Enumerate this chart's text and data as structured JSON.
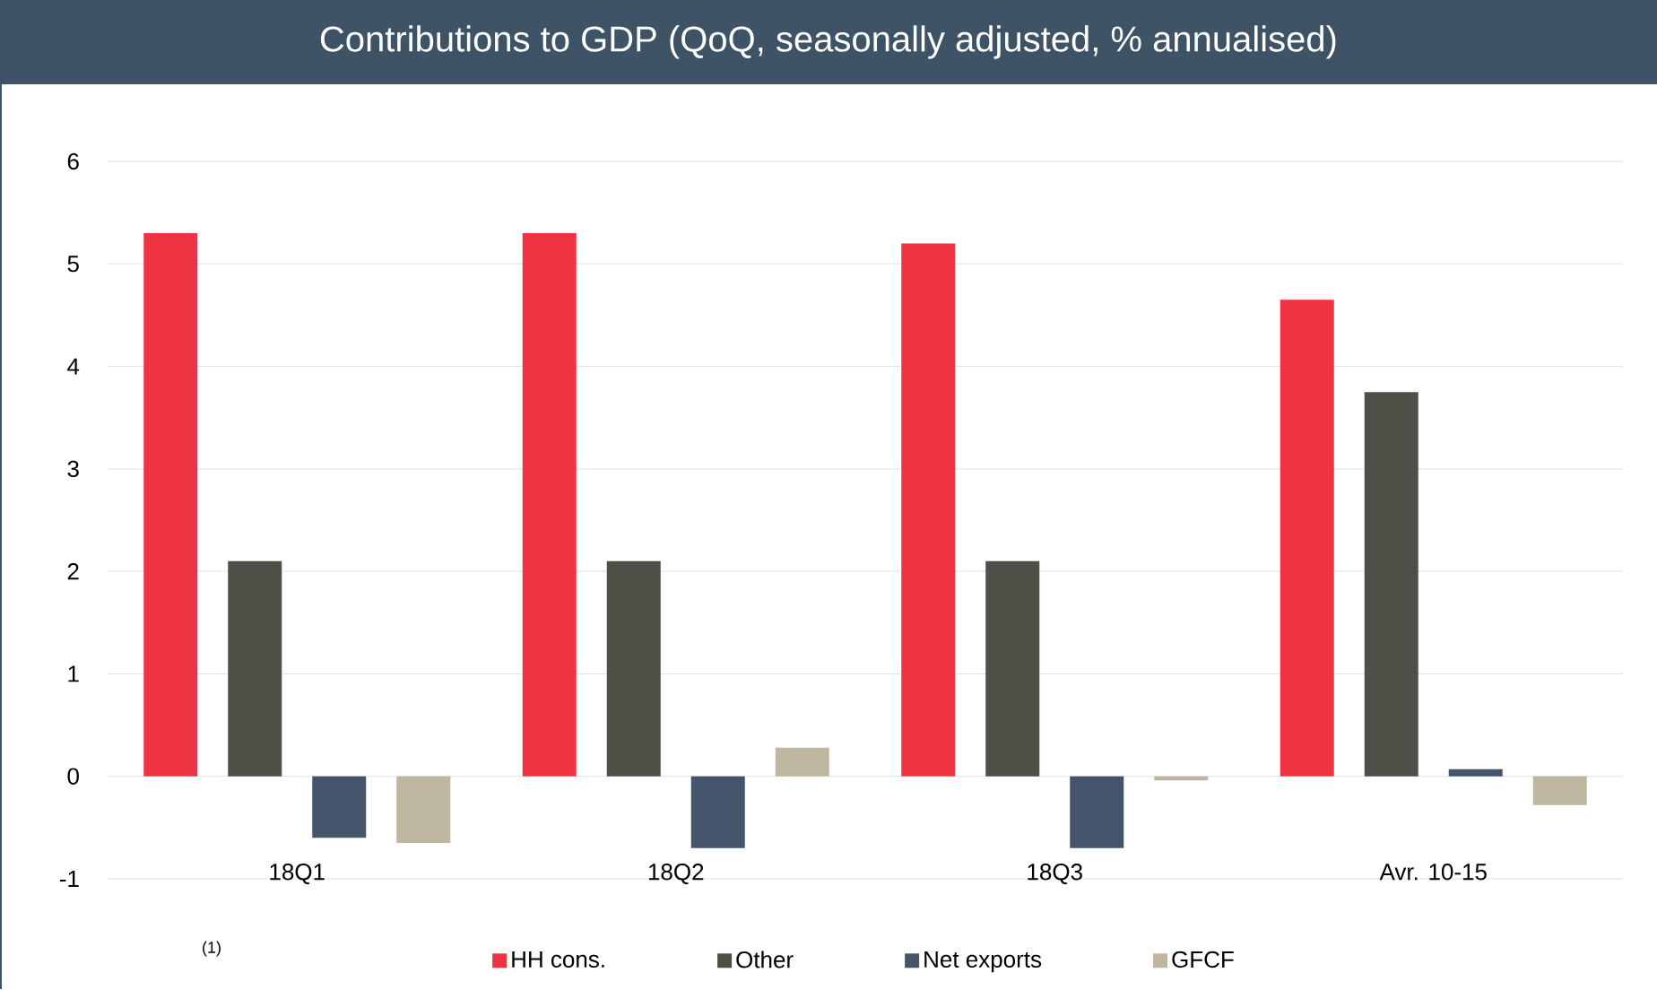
{
  "chart_data": {
    "type": "bar",
    "title": "Contributions to GDP (QoQ, seasonally adjusted, % annualised)",
    "categories": [
      "18Q1",
      "18Q2",
      "18Q3",
      "Avr. 10-15"
    ],
    "series": [
      {
        "name": "HH cons.",
        "color": "#ee3342",
        "values": [
          5.3,
          5.3,
          5.2,
          4.65
        ]
      },
      {
        "name": "Other",
        "color": "#4f4f47",
        "values": [
          2.1,
          2.1,
          2.1,
          3.75
        ]
      },
      {
        "name": "Net exports",
        "color": "#44546a",
        "values": [
          -0.6,
          -0.7,
          -0.7,
          0.07
        ]
      },
      {
        "name": "GFCF",
        "color": "#bfb6a2",
        "values": [
          -0.65,
          0.28,
          -0.04,
          -0.28
        ]
      }
    ],
    "ylim": [
      -1,
      6
    ],
    "yticks": [
      -1,
      0,
      1,
      2,
      3,
      4,
      5,
      6
    ],
    "grid": "y",
    "legend": "bottom",
    "annotations": [
      "(1)"
    ]
  }
}
